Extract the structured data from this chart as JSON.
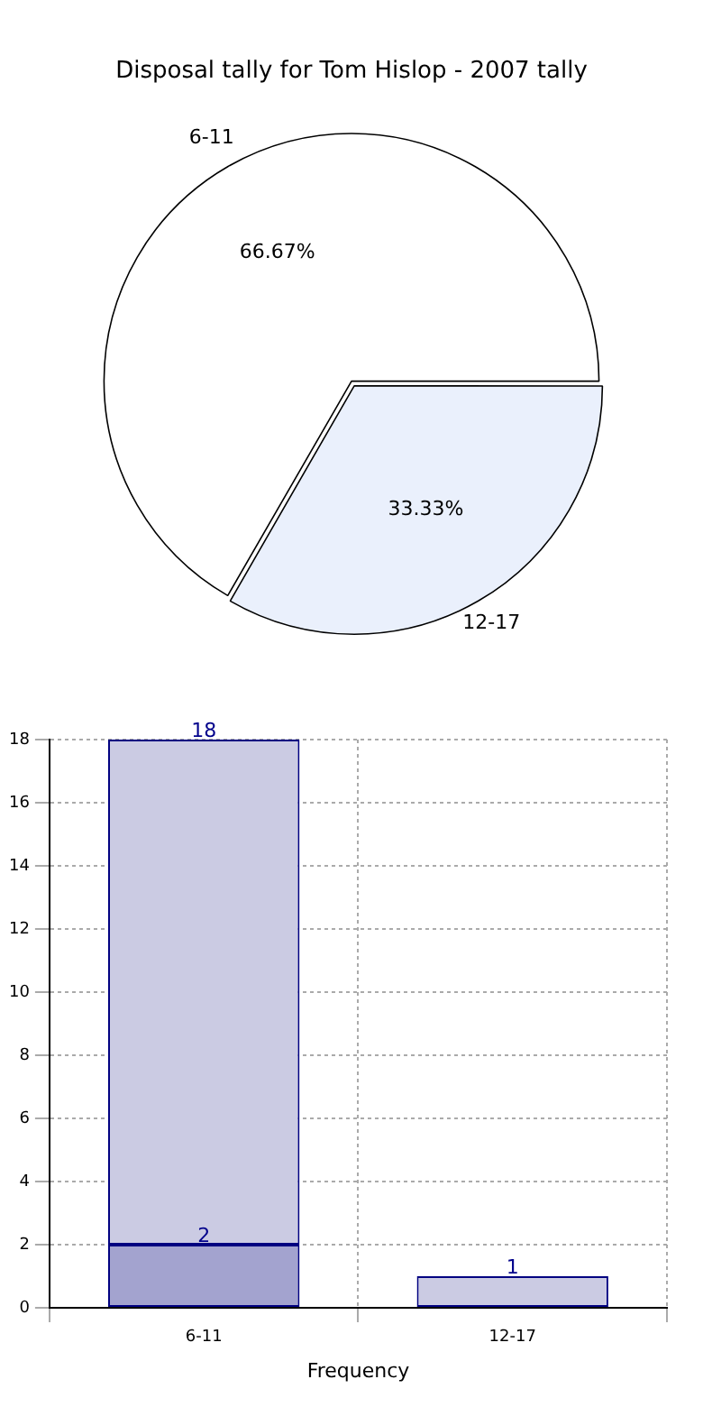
{
  "chart_data": [
    {
      "type": "pie",
      "title": "Disposal tally for Tom Hislop - 2007 tally",
      "categories": [
        "6-11",
        "12-17"
      ],
      "values": [
        66.67,
        33.33
      ],
      "colors": [
        "#ffffff",
        "#eaf0fc"
      ],
      "value_labels": [
        "66.67%",
        "33.33%"
      ],
      "legend": false
    },
    {
      "type": "bar",
      "xlabel": "Frequency",
      "categories": [
        "6-11",
        "12-17"
      ],
      "series": [
        {
          "color": "#a3a3cf",
          "values": [
            2,
            null
          ],
          "value_labels": [
            "2",
            null
          ]
        },
        {
          "color": "#cbcbe3",
          "values": [
            16,
            1
          ]
        }
      ],
      "stacked": true,
      "totals": [
        "18",
        "1"
      ],
      "ylim": [
        0,
        18
      ],
      "yticks": [
        0,
        2,
        4,
        6,
        8,
        10,
        12,
        14,
        16,
        18
      ],
      "grid": true,
      "legend": false
    }
  ]
}
